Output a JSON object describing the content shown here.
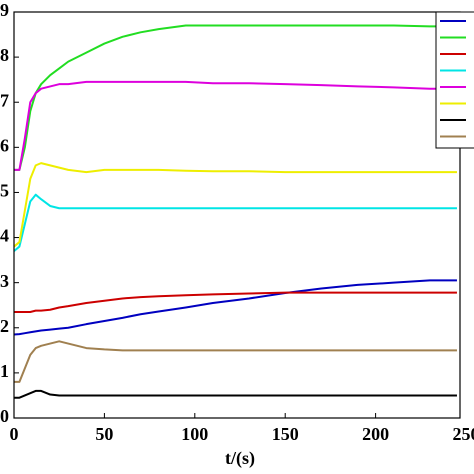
{
  "chart_data": {
    "type": "line",
    "x_label": "t/(s)",
    "x": [
      0,
      3,
      6,
      9,
      12,
      15,
      20,
      25,
      30,
      40,
      50,
      60,
      70,
      80,
      95,
      110,
      130,
      150,
      170,
      190,
      210,
      230,
      245
    ],
    "series": [
      {
        "color": "#0000c0",
        "values": [
          1.85,
          1.86,
          1.88,
          1.9,
          1.92,
          1.94,
          1.96,
          1.98,
          2.0,
          2.08,
          2.15,
          2.22,
          2.3,
          2.36,
          2.45,
          2.55,
          2.65,
          2.77,
          2.87,
          2.95,
          3.0,
          3.05,
          3.05
        ]
      },
      {
        "color": "#22dd22",
        "values": [
          5.5,
          5.5,
          6.0,
          6.8,
          7.2,
          7.4,
          7.6,
          7.75,
          7.9,
          8.1,
          8.3,
          8.45,
          8.55,
          8.62,
          8.7,
          8.7,
          8.7,
          8.7,
          8.7,
          8.7,
          8.7,
          8.68,
          8.68
        ]
      },
      {
        "color": "#cc0000",
        "values": [
          2.35,
          2.35,
          2.35,
          2.35,
          2.38,
          2.38,
          2.4,
          2.45,
          2.48,
          2.55,
          2.6,
          2.65,
          2.68,
          2.7,
          2.72,
          2.74,
          2.76,
          2.78,
          2.78,
          2.78,
          2.78,
          2.78,
          2.78
        ]
      },
      {
        "color": "#00e5e5",
        "values": [
          3.7,
          3.8,
          4.3,
          4.8,
          4.95,
          4.85,
          4.7,
          4.65,
          4.65,
          4.65,
          4.65,
          4.65,
          4.65,
          4.65,
          4.65,
          4.65,
          4.65,
          4.65,
          4.65,
          4.65,
          4.65,
          4.65,
          4.65
        ]
      },
      {
        "color": "#dd00dd",
        "values": [
          5.5,
          5.5,
          6.2,
          7.0,
          7.2,
          7.3,
          7.35,
          7.4,
          7.4,
          7.45,
          7.45,
          7.45,
          7.45,
          7.45,
          7.45,
          7.42,
          7.42,
          7.4,
          7.38,
          7.35,
          7.33,
          7.3,
          7.3
        ]
      },
      {
        "color": "#eeee00",
        "values": [
          3.8,
          3.9,
          4.6,
          5.3,
          5.6,
          5.65,
          5.6,
          5.55,
          5.5,
          5.45,
          5.5,
          5.5,
          5.5,
          5.5,
          5.48,
          5.47,
          5.47,
          5.45,
          5.45,
          5.45,
          5.45,
          5.45,
          5.45
        ]
      },
      {
        "color": "#000000",
        "values": [
          0.45,
          0.45,
          0.5,
          0.55,
          0.6,
          0.6,
          0.52,
          0.5,
          0.5,
          0.5,
          0.5,
          0.5,
          0.5,
          0.5,
          0.5,
          0.5,
          0.5,
          0.5,
          0.5,
          0.5,
          0.5,
          0.5,
          0.5
        ]
      },
      {
        "color": "#a08050",
        "values": [
          0.8,
          0.8,
          1.1,
          1.4,
          1.55,
          1.6,
          1.65,
          1.7,
          1.65,
          1.55,
          1.52,
          1.5,
          1.5,
          1.5,
          1.5,
          1.5,
          1.5,
          1.5,
          1.5,
          1.5,
          1.5,
          1.5,
          1.5
        ]
      }
    ],
    "xlim": [
      0,
      250
    ],
    "xticks": [
      0,
      50,
      100,
      150,
      200,
      250
    ],
    "ylim": [
      0,
      9
    ],
    "yticks": [
      0,
      1,
      2,
      3,
      4,
      5,
      6,
      7,
      8,
      9
    ],
    "legend": "upper right"
  }
}
